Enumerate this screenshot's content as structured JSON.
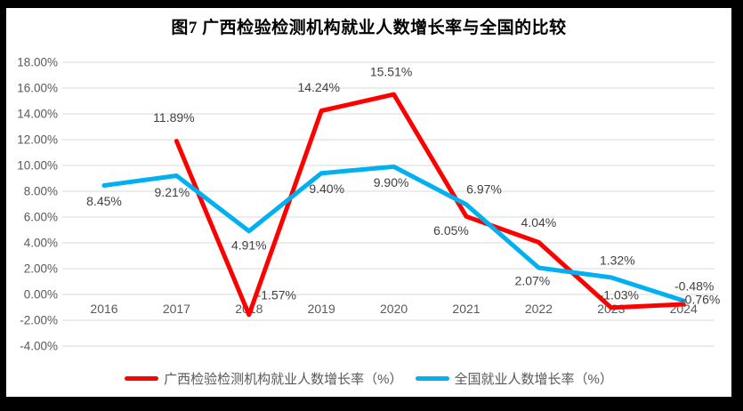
{
  "title": "图7 广西检验检测机构就业人数增长率与全国的比较",
  "colors": {
    "background": "#000000",
    "panel": "#FFFFFF"
  },
  "chart_data": {
    "type": "line",
    "title": "图7 广西检验检测机构就业人数增长率与全国的比较",
    "categories": [
      "2016",
      "2017",
      "2018",
      "2019",
      "2020",
      "2021",
      "2022",
      "2023",
      "2024"
    ],
    "series": [
      {
        "name": "广西检验检测机构就业人数增长率（%）",
        "color": "#FF0000",
        "start_index": 1,
        "values": [
          11.89,
          -1.57,
          14.24,
          15.51,
          6.05,
          4.04,
          -1.03,
          -0.76
        ],
        "labels": [
          "11.89%",
          "-1.57%",
          "14.24%",
          "15.51%",
          "6.05%",
          "4.04%",
          "-1.03%",
          "-0.76%"
        ],
        "label_offsets": [
          [
            -3,
            -26
          ],
          [
            31,
            -22
          ],
          [
            -3,
            -26
          ],
          [
            -3,
            -25
          ],
          [
            -17,
            16
          ],
          [
            0,
            -22
          ],
          [
            9,
            -14
          ],
          [
            19,
            -5
          ]
        ]
      },
      {
        "name": "全国就业人数增长率（%）",
        "color": "#00B0F0",
        "start_index": 0,
        "values": [
          8.45,
          9.21,
          4.91,
          9.4,
          9.9,
          6.97,
          2.07,
          1.32,
          -0.48
        ],
        "labels": [
          "8.45%",
          "9.21%",
          "4.91%",
          "9.40%",
          "9.90%",
          "6.97%",
          "2.07%",
          "1.32%",
          "-0.48%"
        ],
        "label_offsets": [
          [
            0,
            18
          ],
          [
            -5,
            19
          ],
          [
            0,
            16
          ],
          [
            6,
            18
          ],
          [
            -3,
            18
          ],
          [
            20,
            -17
          ],
          [
            -7,
            15
          ],
          [
            7,
            -19
          ],
          [
            12,
            -16
          ]
        ]
      }
    ],
    "y_ticks": [
      "18.00%",
      "16.00%",
      "14.00%",
      "12.00%",
      "10.00%",
      "8.00%",
      "6.00%",
      "4.00%",
      "2.00%",
      "0.00%",
      "-2.00%",
      "-4.00%"
    ],
    "y_tick_values": [
      18,
      16,
      14,
      12,
      10,
      8,
      6,
      4,
      2,
      0,
      -2,
      -4
    ],
    "ylim": [
      -4,
      18
    ],
    "grid": true,
    "legend_position": "bottom",
    "gridline_color": "#D9D9D9",
    "axis_label_color": "#595959",
    "data_label_color": "#404040"
  }
}
